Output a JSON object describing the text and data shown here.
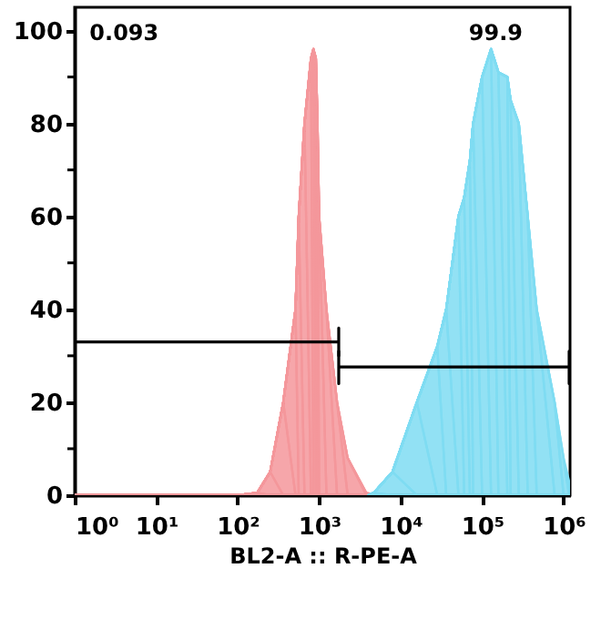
{
  "chart_data": {
    "type": "area",
    "xlabel": "BL2-A :: R-PE-A",
    "log": "x",
    "xlim": [
      1,
      1200000
    ],
    "xticks": [
      {
        "value": 1,
        "label": "10⁰"
      },
      {
        "value": 10,
        "label": "10¹"
      },
      {
        "value": 100,
        "label": "10²"
      },
      {
        "value": 1000,
        "label": "10³"
      },
      {
        "value": 10000,
        "label": "10⁴"
      },
      {
        "value": 100000,
        "label": "10⁵"
      },
      {
        "value": 1000000,
        "label": "10⁶"
      }
    ],
    "ylim": [
      0,
      105
    ],
    "yticks": [
      0,
      {
        "value": 10,
        "label": null
      },
      20,
      {
        "value": 30,
        "label": null
      },
      40,
      {
        "value": 50,
        "label": null
      },
      60,
      {
        "value": 70,
        "label": null
      },
      80,
      {
        "value": 90,
        "label": null
      },
      100
    ],
    "grid": false,
    "series": [
      {
        "color": "#f4979b",
        "x": [
          1,
          100,
          174,
          251,
          363,
          513,
          562,
          661,
          794,
          851,
          912,
          955,
          1000,
          1230,
          1660,
          2239,
          3802,
          5012
        ],
        "values": [
          0,
          0,
          0.5,
          5,
          20,
          40,
          60,
          80,
          94,
          96,
          94,
          80,
          60,
          40,
          20,
          8,
          0.5,
          0
        ]
      },
      {
        "color": "#7fdcf2",
        "x": [
          3981,
          4677,
          7943,
          15849,
          28184,
          36308,
          51286,
          60256,
          70795,
          77625,
          100000,
          128825,
          158489,
          204174,
          223872,
          281838,
          363078,
          467735,
          776247,
          1000000,
          1170000
        ],
        "values": [
          0,
          0.5,
          5,
          20,
          32,
          40,
          60,
          64,
          72,
          80,
          90,
          96,
          91,
          90,
          85,
          80,
          60,
          40,
          20,
          8,
          3
        ]
      },
      {
        "type": "line",
        "color": "#000000",
        "x": [
          1,
          1740,
          1740,
          1740
        ],
        "values": [
          33,
          33,
          36,
          30
        ]
      },
      {
        "type": "line",
        "color": "#000000",
        "x": [
          1740,
          1740,
          1740,
          1170000,
          1170000,
          1170000
        ],
        "values": [
          31,
          24,
          27.6,
          27.6,
          31,
          24
        ]
      }
    ],
    "annotations": [
      "0.093",
      "99.9"
    ]
  }
}
